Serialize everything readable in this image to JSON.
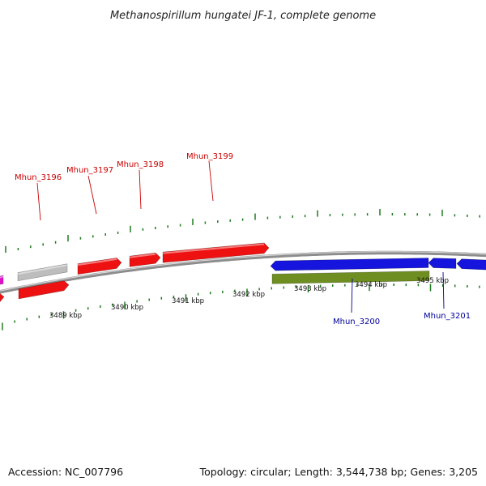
{
  "title": "Methanospirillum hungatei JF-1, complete genome",
  "footer": {
    "accession": "Accession: NC_007796",
    "summary": "Topology: circular; Length: 3,544,738 bp; Genes: 3,205"
  },
  "colors": {
    "backbone": "#8c8c8c",
    "tick": "#1f7a1f",
    "forward_gene": "#ee1111",
    "reverse_gene": "#1515dd",
    "rna_gene": "#bdbdbd",
    "other_gene": "#e010c8",
    "feature_band": "#6f8e22",
    "label_forward": "#cc0000",
    "label_reverse": "#00009a"
  },
  "scale": {
    "unit": "kbp",
    "labels": [
      "3489 kbp",
      "3490 kbp",
      "3491 kbp",
      "3492 kbp",
      "3493 kbp",
      "3494 kbp",
      "3495 kbp"
    ]
  },
  "gene_labels": [
    {
      "name": "Mhun_3196",
      "strand": "forward"
    },
    {
      "name": "Mhun_3197",
      "strand": "forward"
    },
    {
      "name": "Mhun_3198",
      "strand": "forward"
    },
    {
      "name": "Mhun_3199",
      "strand": "forward"
    },
    {
      "name": "Mhun_3200",
      "strand": "reverse"
    },
    {
      "name": "Mhun_3201",
      "strand": "reverse"
    }
  ]
}
